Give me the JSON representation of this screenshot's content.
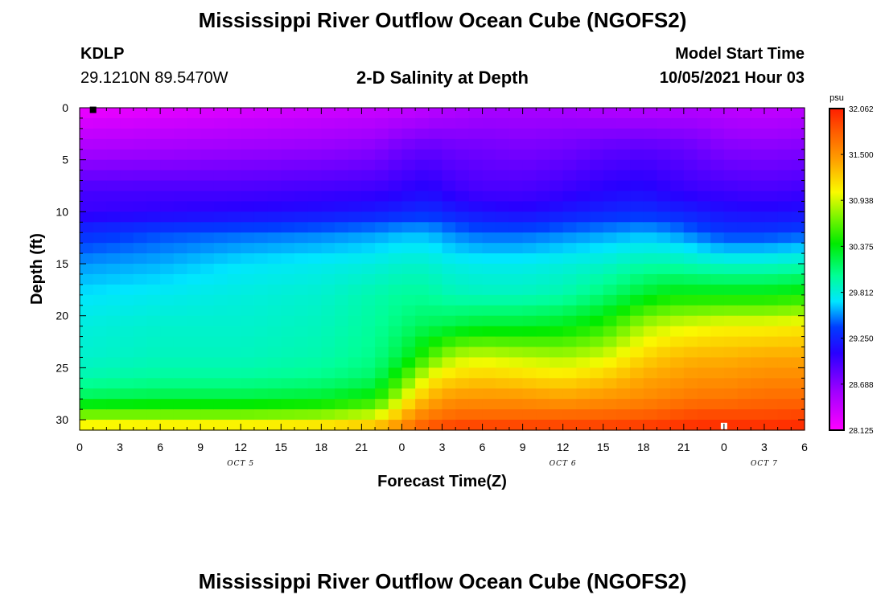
{
  "header": {
    "title": "Mississippi River Outflow Ocean Cube (NGOFS2)",
    "station_id": "KDLP",
    "station_coords": "29.1210N  89.5470W",
    "subtitle": "2-D Salinity at Depth",
    "model_label": "Model Start Time",
    "model_time": "10/05/2021 Hour 03"
  },
  "footer": {
    "title": "Mississippi River Outflow Ocean Cube (NGOFS2)"
  },
  "chart_data": {
    "type": "heatmap",
    "title": "2-D Salinity at Depth",
    "xlabel": "Forecast Time(Z)",
    "ylabel": "Depth (ft)",
    "x_range_hours": [
      0,
      54
    ],
    "x_tick_labels": [
      "0",
      "3",
      "6",
      "9",
      "12",
      "15",
      "18",
      "21",
      "0",
      "3",
      "6",
      "9",
      "12",
      "15",
      "18",
      "21",
      "0",
      "3",
      "6"
    ],
    "x_tick_hours": [
      0,
      3,
      6,
      9,
      12,
      15,
      18,
      21,
      24,
      27,
      30,
      33,
      36,
      39,
      42,
      45,
      48,
      51,
      54
    ],
    "date_labels": [
      {
        "label": "OCT 5",
        "hour": 12
      },
      {
        "label": "OCT 6",
        "hour": 36
      },
      {
        "label": "OCT 7",
        "hour": 51
      }
    ],
    "y_range": [
      0,
      31
    ],
    "y_ticks": [
      0,
      5,
      10,
      15,
      20,
      25,
      30
    ],
    "y_inverted": true,
    "colorbar": {
      "unit": "psu",
      "min": 28.125,
      "max": 32.062,
      "ticks": [
        "32.062",
        "31.500",
        "30.938",
        "30.375",
        "29.812",
        "29.250",
        "28.688",
        "28.125"
      ],
      "tick_values": [
        32.062,
        31.5,
        30.938,
        30.375,
        29.812,
        29.25,
        28.688,
        28.125
      ]
    },
    "markers": [
      {
        "hour": 1,
        "depth": 0.2,
        "color": "#000000"
      },
      {
        "hour": 48,
        "depth": 30.6,
        "color": "#ffffff"
      }
    ],
    "time_hours": [
      0,
      6,
      12,
      18,
      22,
      24,
      25,
      26,
      27,
      28,
      30,
      33,
      36,
      39,
      42,
      44,
      46,
      48,
      51,
      54
    ],
    "depth_ft": [
      0,
      4,
      8,
      10,
      12,
      15,
      18,
      21,
      24,
      26,
      28,
      29.5,
      31
    ],
    "salinity_psu": [
      [
        28.2,
        28.25,
        28.3,
        28.35,
        28.38,
        28.4,
        28.42,
        28.45,
        28.48,
        28.5,
        28.55,
        28.55,
        28.55,
        28.5,
        28.48,
        28.48,
        28.5,
        28.45,
        28.42,
        28.45
      ],
      [
        28.55,
        28.58,
        28.62,
        28.65,
        28.7,
        28.8,
        28.82,
        28.85,
        28.82,
        28.8,
        28.78,
        28.75,
        28.78,
        28.85,
        28.88,
        28.85,
        28.8,
        28.72,
        28.7,
        28.72
      ],
      [
        28.95,
        28.95,
        28.95,
        28.98,
        29.0,
        29.05,
        29.08,
        29.1,
        29.05,
        29.0,
        28.95,
        28.95,
        29.0,
        29.08,
        29.12,
        29.05,
        29.0,
        28.98,
        28.95,
        28.98
      ],
      [
        29.0,
        29.05,
        29.1,
        29.15,
        29.2,
        29.25,
        29.28,
        29.3,
        29.25,
        29.2,
        29.15,
        29.1,
        29.18,
        29.25,
        29.3,
        29.25,
        29.2,
        29.15,
        29.12,
        29.15
      ],
      [
        29.3,
        29.4,
        29.45,
        29.5,
        29.55,
        29.6,
        29.6,
        29.6,
        29.55,
        29.5,
        29.45,
        29.45,
        29.5,
        29.55,
        29.6,
        29.55,
        29.45,
        29.35,
        29.35,
        29.4
      ],
      [
        29.55,
        29.6,
        29.7,
        29.75,
        29.8,
        29.85,
        29.85,
        29.85,
        29.8,
        29.78,
        29.75,
        29.75,
        29.8,
        29.85,
        29.95,
        29.95,
        29.9,
        29.85,
        29.85,
        29.9
      ],
      [
        29.7,
        29.75,
        29.8,
        29.85,
        29.95,
        30.0,
        30.0,
        30.0,
        29.95,
        29.92,
        29.9,
        29.9,
        29.95,
        30.1,
        30.3,
        30.4,
        30.4,
        30.4,
        30.4,
        30.45
      ],
      [
        29.8,
        29.85,
        29.85,
        29.9,
        30.0,
        30.1,
        30.15,
        30.2,
        30.2,
        30.25,
        30.3,
        30.3,
        30.35,
        30.5,
        30.85,
        30.95,
        31.0,
        31.05,
        31.05,
        31.1
      ],
      [
        29.85,
        29.9,
        29.9,
        29.95,
        30.05,
        30.25,
        30.4,
        30.6,
        30.75,
        30.9,
        30.95,
        30.9,
        30.85,
        30.95,
        31.2,
        31.3,
        31.35,
        31.35,
        31.4,
        31.4
      ],
      [
        29.95,
        30.0,
        30.0,
        30.05,
        30.15,
        30.55,
        30.8,
        31.05,
        31.15,
        31.2,
        31.25,
        31.2,
        31.15,
        31.25,
        31.4,
        31.45,
        31.5,
        31.5,
        31.55,
        31.55
      ],
      [
        30.2,
        30.25,
        30.25,
        30.3,
        30.45,
        30.95,
        31.2,
        31.35,
        31.45,
        31.5,
        31.5,
        31.5,
        31.45,
        31.5,
        31.55,
        31.6,
        31.65,
        31.65,
        31.7,
        31.7
      ],
      [
        30.7,
        30.7,
        30.7,
        30.75,
        30.9,
        31.3,
        31.5,
        31.6,
        31.65,
        31.7,
        31.7,
        31.7,
        31.7,
        31.72,
        31.75,
        31.8,
        31.85,
        31.85,
        31.85,
        31.88
      ],
      [
        31.2,
        31.25,
        31.25,
        31.3,
        31.4,
        31.6,
        31.75,
        31.85,
        31.9,
        31.95,
        31.95,
        31.95,
        31.95,
        31.95,
        31.98,
        32.0,
        32.02,
        32.02,
        32.02,
        32.04
      ]
    ]
  }
}
